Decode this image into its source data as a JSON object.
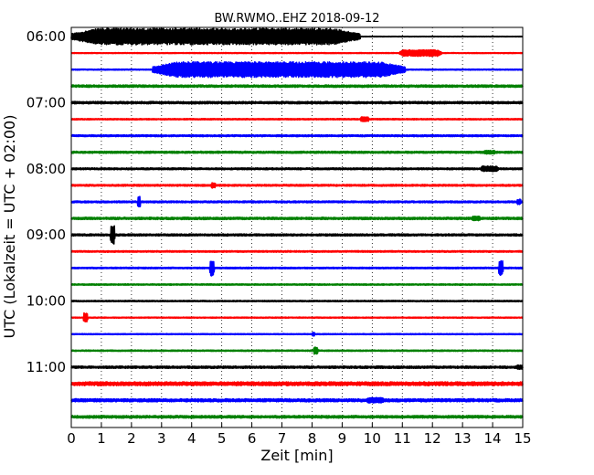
{
  "chart_data": {
    "type": "line",
    "title": "BW.RWMO..EHZ 2018-09-12",
    "xlabel": "Zeit  [min]",
    "ylabel": "UTC (Lokalzeit = UTC + 02:00)",
    "xlim": [
      0,
      15
    ],
    "x_ticks": [
      "0",
      "1",
      "2",
      "3",
      "4",
      "5",
      "6",
      "7",
      "8",
      "9",
      "10",
      "11",
      "12",
      "13",
      "14",
      "15"
    ],
    "y_tick_labels": [
      "06:00",
      "07:00",
      "08:00",
      "09:00",
      "10:00",
      "11:00"
    ],
    "trace_interval_minutes": 15,
    "grid": "vertical dotted",
    "colors": [
      "#000000",
      "#ff0000",
      "#0000ff",
      "#008000"
    ],
    "traces": [
      {
        "start": "06:00",
        "color": "#000000",
        "noise": 0.22,
        "events": [
          {
            "from": 0.0,
            "to": 9.6,
            "amp": 9
          }
        ]
      },
      {
        "start": "06:15",
        "color": "#ff0000",
        "noise": 0.35,
        "events": [
          {
            "from": 10.9,
            "to": 12.3,
            "amp": 3.5
          }
        ]
      },
      {
        "start": "06:30",
        "color": "#0000ff",
        "noise": 0.4,
        "events": [
          {
            "from": 2.7,
            "to": 11.1,
            "amp": 8.5
          }
        ]
      },
      {
        "start": "06:45",
        "color": "#008000",
        "noise": 0.9,
        "events": []
      },
      {
        "start": "07:00",
        "color": "#000000",
        "noise": 0.9,
        "events": []
      },
      {
        "start": "07:15",
        "color": "#ff0000",
        "noise": 0.5,
        "events": [
          {
            "from": 9.6,
            "to": 9.9,
            "amp": 2.5
          }
        ]
      },
      {
        "start": "07:30",
        "color": "#0000ff",
        "noise": 0.7,
        "events": []
      },
      {
        "start": "07:45",
        "color": "#008000",
        "noise": 0.8,
        "events": [
          {
            "from": 13.7,
            "to": 14.1,
            "amp": 2
          }
        ]
      },
      {
        "start": "08:00",
        "color": "#000000",
        "noise": 0.7,
        "events": [
          {
            "from": 13.6,
            "to": 14.2,
            "amp": 3
          }
        ]
      },
      {
        "start": "08:15",
        "color": "#ff0000",
        "noise": 0.7,
        "events": [
          {
            "from": 4.65,
            "to": 4.8,
            "amp": 3
          }
        ]
      },
      {
        "start": "08:30",
        "color": "#0000ff",
        "noise": 0.7,
        "events": [
          {
            "from": 2.2,
            "to": 2.3,
            "amp": 6
          },
          {
            "from": 14.8,
            "to": 14.95,
            "amp": 3
          }
        ]
      },
      {
        "start": "08:45",
        "color": "#008000",
        "noise": 0.9,
        "events": [
          {
            "from": 13.3,
            "to": 13.6,
            "amp": 2.5
          }
        ]
      },
      {
        "start": "09:00",
        "color": "#000000",
        "noise": 0.8,
        "events": [
          {
            "from": 1.3,
            "to": 1.45,
            "amp": 10
          }
        ]
      },
      {
        "start": "09:15",
        "color": "#ff0000",
        "noise": 0.6,
        "events": []
      },
      {
        "start": "09:30",
        "color": "#0000ff",
        "noise": 0.6,
        "events": [
          {
            "from": 4.6,
            "to": 4.75,
            "amp": 9
          },
          {
            "from": 14.2,
            "to": 14.35,
            "amp": 8
          }
        ]
      },
      {
        "start": "09:45",
        "color": "#008000",
        "noise": 0.5,
        "events": []
      },
      {
        "start": "10:00",
        "color": "#000000",
        "noise": 0.5,
        "events": []
      },
      {
        "start": "10:15",
        "color": "#ff0000",
        "noise": 0.4,
        "events": [
          {
            "from": 0.4,
            "to": 0.55,
            "amp": 5
          }
        ]
      },
      {
        "start": "10:30",
        "color": "#0000ff",
        "noise": 0.4,
        "events": [
          {
            "from": 8.0,
            "to": 8.1,
            "amp": 2
          }
        ]
      },
      {
        "start": "10:45",
        "color": "#008000",
        "noise": 0.5,
        "events": [
          {
            "from": 8.05,
            "to": 8.2,
            "amp": 4
          }
        ]
      },
      {
        "start": "11:00",
        "color": "#000000",
        "noise": 0.9,
        "events": [
          {
            "from": 14.8,
            "to": 15.0,
            "amp": 2.5
          }
        ]
      },
      {
        "start": "11:15",
        "color": "#ff0000",
        "noise": 1.5,
        "events": []
      },
      {
        "start": "11:30",
        "color": "#0000ff",
        "noise": 1.2,
        "events": [
          {
            "from": 9.8,
            "to": 10.4,
            "amp": 3
          }
        ]
      },
      {
        "start": "11:45",
        "color": "#008000",
        "noise": 1.0,
        "events": []
      }
    ]
  }
}
